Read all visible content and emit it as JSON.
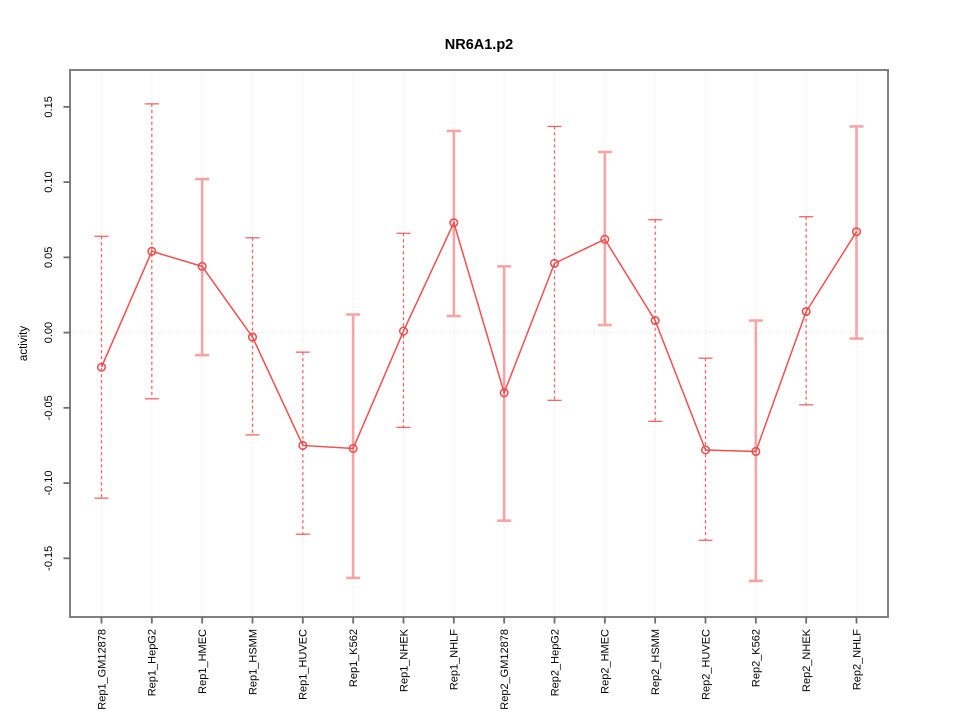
{
  "title": "NR6A1.p2",
  "ylabel": "activity",
  "colors": {
    "line_red": "#f05050",
    "marker_red": "#ee4b4b",
    "solid_errorbar_pink": "#f7a4a4",
    "dashed_errorbar_red": "#f06060",
    "gridline_gray": "#e3e3e3",
    "zero_line_gray": "#e3e3e3",
    "frame_gray": "#808080",
    "tick_gray": "#6e6e6e",
    "text_black": "#000000",
    "background": "#ffffff"
  },
  "chart_data": {
    "type": "line",
    "title": "NR6A1.p2",
    "xlabel": "",
    "ylabel": "activity",
    "legend": "none",
    "grid": "vertical dotted gridline at each category; horizontal dotted line at y=0",
    "marker": "open-circle",
    "categories": [
      "Rep1_GM12878",
      "Rep1_HepG2",
      "Rep1_HMEC",
      "Rep1_HSMM",
      "Rep1_HUVEC",
      "Rep1_K562",
      "Rep1_NHEK",
      "Rep1_NHLF",
      "Rep2_GM12878",
      "Rep2_HepG2",
      "Rep2_HMEC",
      "Rep2_HSMM",
      "Rep2_HUVEC",
      "Rep2_K562",
      "Rep2_NHEK",
      "Rep2_NHLF"
    ],
    "series": [
      {
        "name": "activity",
        "values": [
          -0.023,
          0.054,
          0.044,
          -0.003,
          -0.075,
          -0.077,
          0.001,
          0.073,
          -0.04,
          0.046,
          0.062,
          0.008,
          -0.078,
          -0.079,
          0.014,
          0.067
        ],
        "error_low": [
          -0.11,
          -0.044,
          -0.015,
          -0.068,
          -0.134,
          -0.163,
          -0.063,
          0.011,
          -0.125,
          -0.045,
          0.005,
          -0.059,
          -0.138,
          -0.165,
          -0.048,
          -0.004
        ],
        "error_high": [
          0.064,
          0.152,
          0.102,
          0.063,
          -0.013,
          0.012,
          0.066,
          0.134,
          0.044,
          0.137,
          0.12,
          0.075,
          -0.017,
          0.008,
          0.077,
          0.137
        ],
        "error_bar_styles": [
          "dashed",
          "dashed",
          "solid",
          "dashed",
          "dashed",
          "solid",
          "dashed",
          "solid",
          "solid",
          "dashed",
          "solid",
          "dashed",
          "dashed",
          "solid",
          "dashed",
          "solid"
        ]
      }
    ],
    "yticks": [
      {
        "value": -0.15,
        "label": "-0.15"
      },
      {
        "value": -0.1,
        "label": "-0.10"
      },
      {
        "value": -0.05,
        "label": "-0.05"
      },
      {
        "value": 0.0,
        "label": "0.00"
      },
      {
        "value": 0.05,
        "label": "0.05"
      },
      {
        "value": 0.1,
        "label": "0.10"
      },
      {
        "value": 0.15,
        "label": "0.15"
      }
    ],
    "ylim": [
      -0.189,
      0.1745
    ]
  }
}
